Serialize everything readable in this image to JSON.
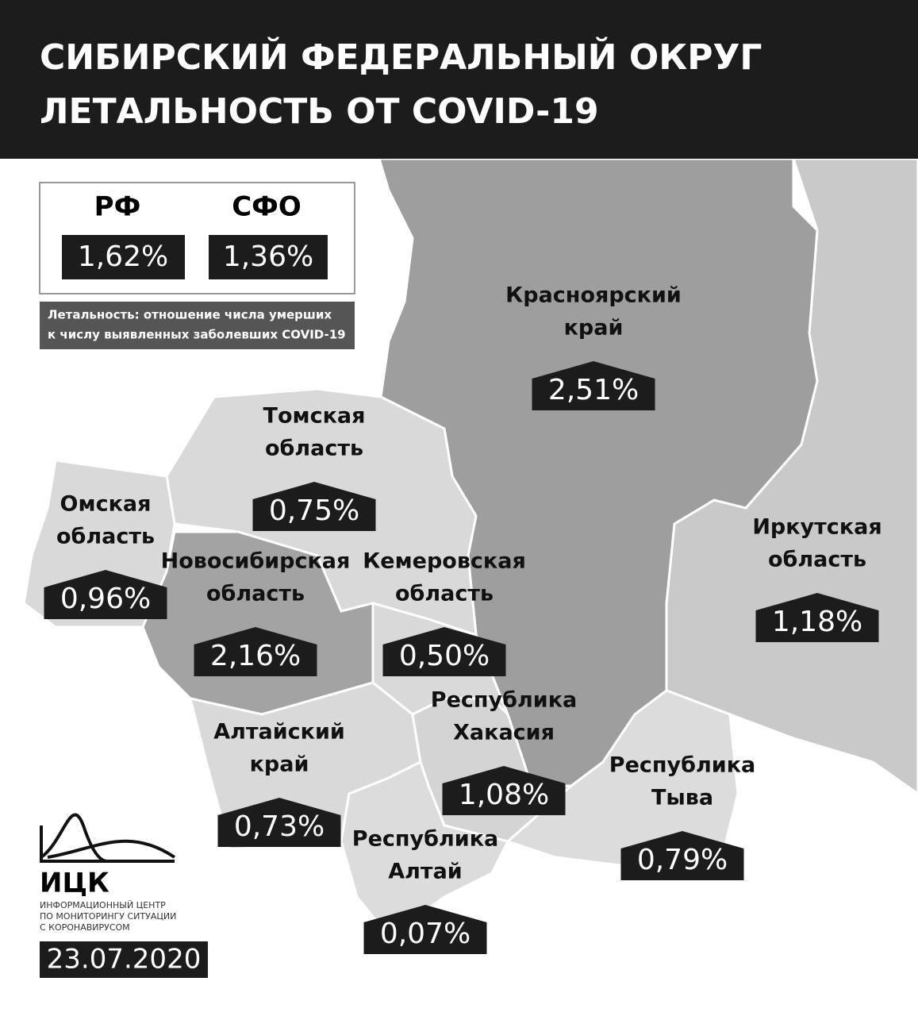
{
  "header": {
    "title": [
      "СИБИРСКИЙ ФЕДЕРАЛЬНЫЙ ОКРУГ",
      "ЛЕТАЛЬНОСТЬ ОТ COVID-19"
    ]
  },
  "summary": [
    {
      "label": "РФ",
      "value": "1,62%"
    },
    {
      "label": "СФО",
      "value": "1,36%"
    }
  ],
  "note": [
    "Летальность: отношение числа умерших",
    "к числу выявленных заболевших COVID-19"
  ],
  "regions": [
    {
      "name": [
        "Красноярский",
        "край"
      ],
      "value": "2,51%"
    },
    {
      "name": [
        "Иркутская",
        "область"
      ],
      "value": "1,18%"
    },
    {
      "name": [
        "Томская",
        "область"
      ],
      "value": "0,75%"
    },
    {
      "name": [
        "Омская",
        "область"
      ],
      "value": "0,96%"
    },
    {
      "name": [
        "Новосибирская",
        "область"
      ],
      "value": "2,16%"
    },
    {
      "name": [
        "Кемеровская",
        "область"
      ],
      "value": "0,50%"
    },
    {
      "name": [
        "Республика",
        "Хакасия"
      ],
      "value": "1,08%"
    },
    {
      "name": [
        "Алтайский",
        "край"
      ],
      "value": "0,73%"
    },
    {
      "name": [
        "Республика",
        "Тыва"
      ],
      "value": "0,79%"
    },
    {
      "name": [
        "Республика",
        "Алтай"
      ],
      "value": "0,07%"
    }
  ],
  "logo": {
    "name": "ИЦК",
    "caption": [
      "ИНФОРМАЦИОННЫЙ ЦЕНТР",
      "ПО МОНИТОРИНГУ СИТУАЦИИ",
      "С КОРОНАВИРУСОМ"
    ]
  },
  "date": "23.07.2020"
}
